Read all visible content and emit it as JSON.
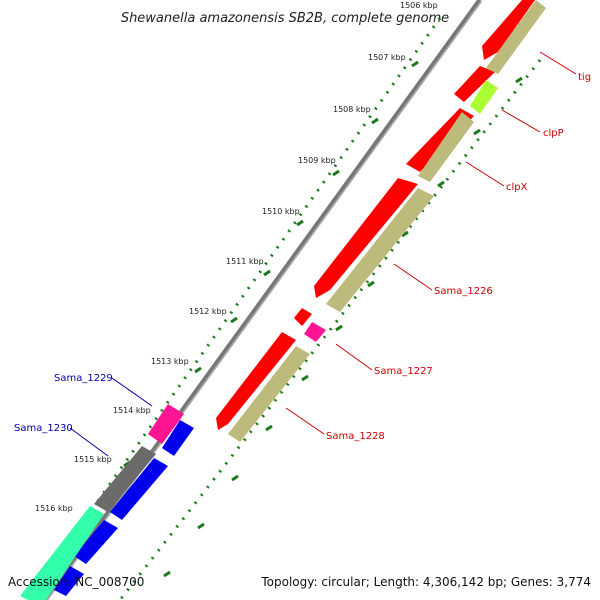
{
  "title": "Shewanella amazonensis SB2B, complete genome",
  "footer": {
    "accession": "Accession: NC_008700",
    "topology": "Topology: circular; Length: 4,306,142 bp; Genes: 3,774"
  },
  "colors": {
    "cds_red": "#ff0000",
    "gene_khaki": "#bdbb7b",
    "label_red": "#cc0000",
    "label_blue": "#0000aa",
    "backbone": "#888888",
    "tick_green": "#1b7a1b",
    "pink": "#ff1493",
    "blue": "#0000ee",
    "gray": "#6b6b6b",
    "mint": "#33ffaa",
    "lime": "#aaff33"
  },
  "ticks": [
    "1506 kbp",
    "1507 kbp",
    "1508 kbp",
    "1509 kbp",
    "1510 kbp",
    "1511 kbp",
    "1512 kbp",
    "1513 kbp",
    "1514 kbp",
    "1515 kbp",
    "1516 kbp"
  ],
  "gene_labels": [
    {
      "id": "tig",
      "text": "tig"
    },
    {
      "id": "clpP",
      "text": "clpP"
    },
    {
      "id": "clpX",
      "text": "clpX"
    },
    {
      "id": "sama1226",
      "text": "Sama_1226"
    },
    {
      "id": "sama1227",
      "text": "Sama_1227"
    },
    {
      "id": "sama1228",
      "text": "Sama_1228"
    },
    {
      "id": "sama1229",
      "text": "Sama_1229"
    },
    {
      "id": "sama1230",
      "text": "Sama_1230"
    }
  ]
}
